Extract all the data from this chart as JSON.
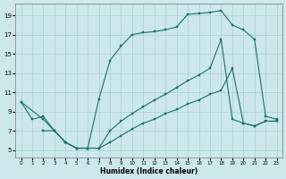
{
  "xlabel": "Humidex (Indice chaleur)",
  "bg_color": "#cce8ec",
  "grid_color": "#aacdd4",
  "line_color": "#1a6e6a",
  "xlim": [
    -0.5,
    23.5
  ],
  "ylim": [
    4.2,
    20.2
  ],
  "xticks": [
    0,
    1,
    2,
    3,
    4,
    5,
    6,
    7,
    8,
    9,
    10,
    11,
    12,
    13,
    14,
    15,
    16,
    17,
    18,
    19,
    20,
    21,
    22,
    23
  ],
  "yticks": [
    5,
    7,
    9,
    11,
    13,
    15,
    17,
    19
  ],
  "curve1_x": [
    0,
    1,
    2,
    3,
    4,
    5,
    6,
    7,
    8,
    9,
    10,
    11,
    12,
    13,
    14,
    15,
    16,
    17,
    18,
    19,
    20,
    21,
    22,
    23
  ],
  "curve1_y": [
    10,
    8.2,
    8.5,
    7.0,
    5.8,
    5.2,
    5.2,
    10.3,
    14.3,
    15.8,
    17.0,
    17.2,
    17.3,
    17.5,
    17.8,
    19.1,
    19.2,
    19.3,
    19.5,
    18.0,
    17.5,
    16.5,
    8.5,
    8.2
  ],
  "curve2_x": [
    0,
    2,
    3,
    4,
    5,
    6,
    7,
    8,
    9,
    10,
    11,
    12,
    13,
    14,
    15,
    16,
    17,
    18,
    19,
    20,
    21,
    22,
    23
  ],
  "curve2_y": [
    10,
    8.2,
    7.0,
    5.8,
    5.2,
    5.2,
    5.2,
    7.0,
    8.0,
    8.8,
    9.5,
    10.2,
    10.8,
    11.5,
    12.2,
    12.8,
    13.5,
    16.5,
    8.2,
    7.8,
    7.5,
    8.0,
    8.0
  ],
  "curve3_x": [
    2,
    3,
    4,
    5,
    6,
    7,
    8,
    9,
    10,
    11,
    12,
    13,
    14,
    15,
    16,
    17,
    18,
    19,
    20,
    21,
    22,
    23
  ],
  "curve3_y": [
    7.0,
    7.0,
    5.8,
    5.2,
    5.2,
    5.2,
    5.8,
    6.5,
    7.2,
    7.8,
    8.2,
    8.8,
    9.2,
    9.8,
    10.2,
    10.8,
    11.2,
    13.5,
    7.8,
    7.5,
    8.0,
    8.0
  ]
}
